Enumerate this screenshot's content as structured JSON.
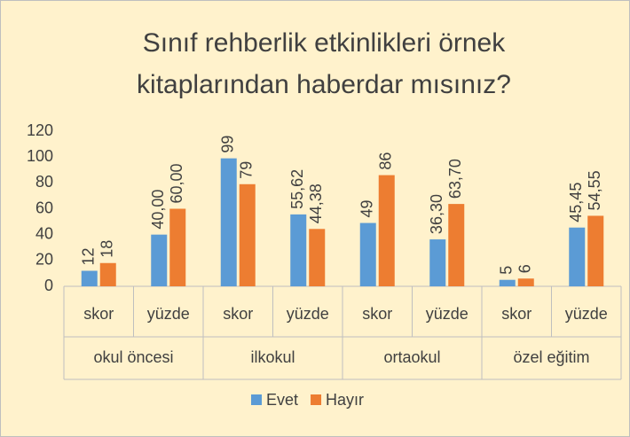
{
  "chart_data": {
    "type": "bar",
    "title": [
      "Sınıf rehberlik etkinlikleri örnek",
      "kitaplarından haberdar mısınız?"
    ],
    "categories": [
      "skor",
      "yüzde",
      "skor",
      "yüzde",
      "skor",
      "yüzde",
      "skor",
      "yüzde"
    ],
    "groups": [
      "okul öncesi",
      "ilkokul",
      "ortaokul",
      "özel eğitim"
    ],
    "series": [
      {
        "name": "Evet",
        "color": "#5b9bd5",
        "values": [
          12,
          40,
          99,
          55.62,
          49,
          36.3,
          5,
          45.45
        ],
        "value_labels": [
          "12",
          "40,00",
          "99",
          "55,62",
          "49",
          "36,30",
          "5",
          "45,45"
        ]
      },
      {
        "name": "Hayır",
        "color": "#ed7d31",
        "values": [
          18,
          60,
          79,
          44.38,
          86,
          63.7,
          6,
          54.55
        ],
        "value_labels": [
          "18",
          "60,00",
          "79",
          "44,38",
          "86",
          "63,70",
          "6",
          "54,55"
        ]
      }
    ],
    "ylim": [
      0,
      120
    ],
    "yticks": [
      0,
      20,
      40,
      60,
      80,
      100,
      120
    ],
    "grid": false,
    "legend": "bottom"
  }
}
